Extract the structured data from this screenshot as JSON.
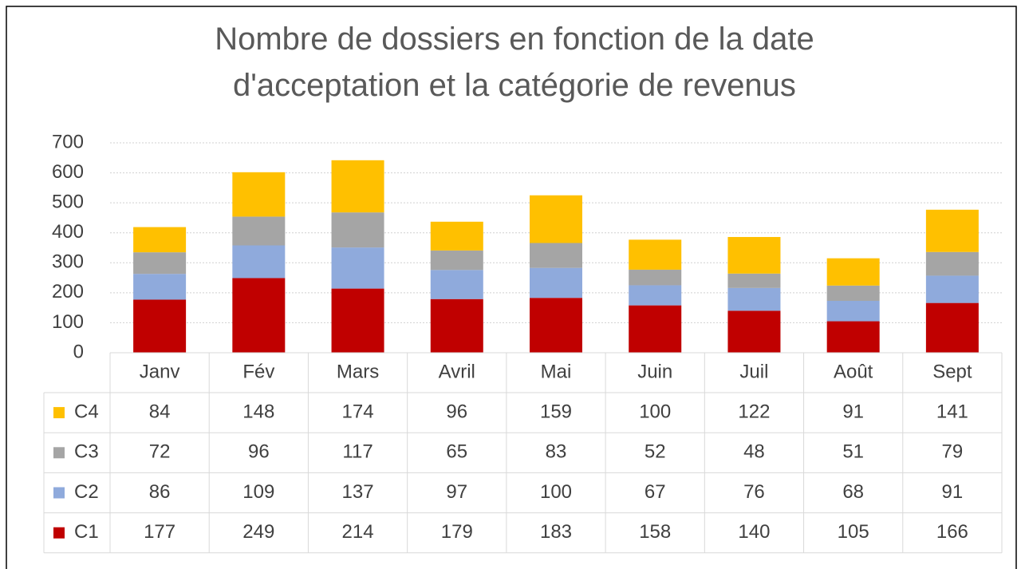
{
  "chart_data": {
    "type": "stacked_bar",
    "title": "Nombre de dossiers en fonction de la date d'acceptation et la catégorie de revenus",
    "categories": [
      "Janv",
      "Fév",
      "Mars",
      "Avril",
      "Mai",
      "Juin",
      "Juil",
      "Août",
      "Sept"
    ],
    "series": [
      {
        "name": "C1",
        "color": "#c00000",
        "values": [
          177,
          249,
          214,
          179,
          183,
          158,
          140,
          105,
          166
        ]
      },
      {
        "name": "C2",
        "color": "#8faadc",
        "values": [
          86,
          109,
          137,
          97,
          100,
          67,
          76,
          68,
          91
        ]
      },
      {
        "name": "C3",
        "color": "#a5a5a5",
        "values": [
          72,
          96,
          117,
          65,
          83,
          52,
          48,
          51,
          79
        ]
      },
      {
        "name": "C4",
        "color": "#ffc000",
        "values": [
          84,
          148,
          174,
          96,
          159,
          100,
          122,
          91,
          141
        ]
      }
    ],
    "ylim": [
      0,
      700
    ],
    "yticks": [
      0,
      100,
      200,
      300,
      400,
      500,
      600,
      700
    ],
    "grid": true,
    "data_table": true
  }
}
